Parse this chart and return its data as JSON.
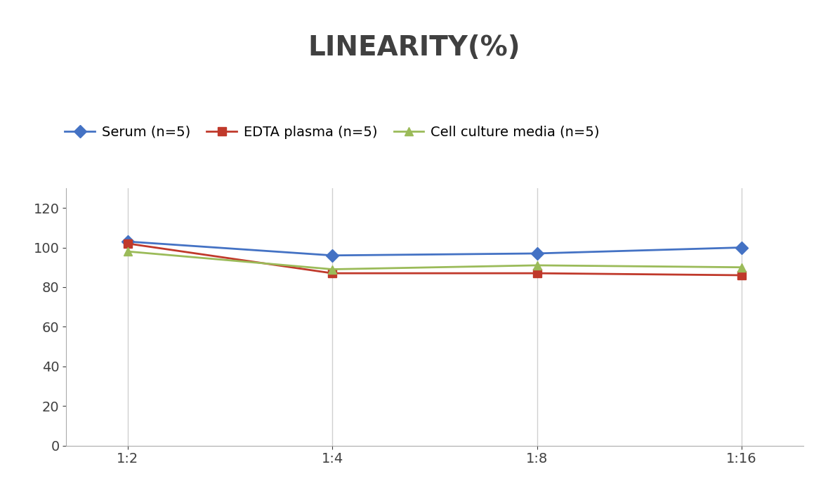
{
  "title": "LINEARITY(%)",
  "x_labels": [
    "1:2",
    "1:4",
    "1:8",
    "1:16"
  ],
  "x_positions": [
    0,
    1,
    2,
    3
  ],
  "series": [
    {
      "label": "Serum (n=5)",
      "values": [
        103,
        96,
        97,
        100
      ],
      "color": "#4472C4",
      "marker": "D",
      "marker_facecolor": "#4472C4",
      "linewidth": 2.0
    },
    {
      "label": "EDTA plasma (n=5)",
      "values": [
        102,
        87,
        87,
        86
      ],
      "color": "#C0392B",
      "marker": "s",
      "marker_facecolor": "#C0392B",
      "linewidth": 2.0
    },
    {
      "label": "Cell culture media (n=5)",
      "values": [
        98,
        89,
        91,
        90
      ],
      "color": "#9BBB59",
      "marker": "^",
      "marker_facecolor": "#9BBB59",
      "linewidth": 2.0
    }
  ],
  "ylim": [
    0,
    130
  ],
  "yticks": [
    0,
    20,
    40,
    60,
    80,
    100,
    120
  ],
  "background_color": "#ffffff",
  "title_fontsize": 28,
  "legend_fontsize": 14,
  "tick_fontsize": 14,
  "grid_color": "#d0d0d0",
  "title_color": "#404040",
  "spine_color": "#aaaaaa"
}
